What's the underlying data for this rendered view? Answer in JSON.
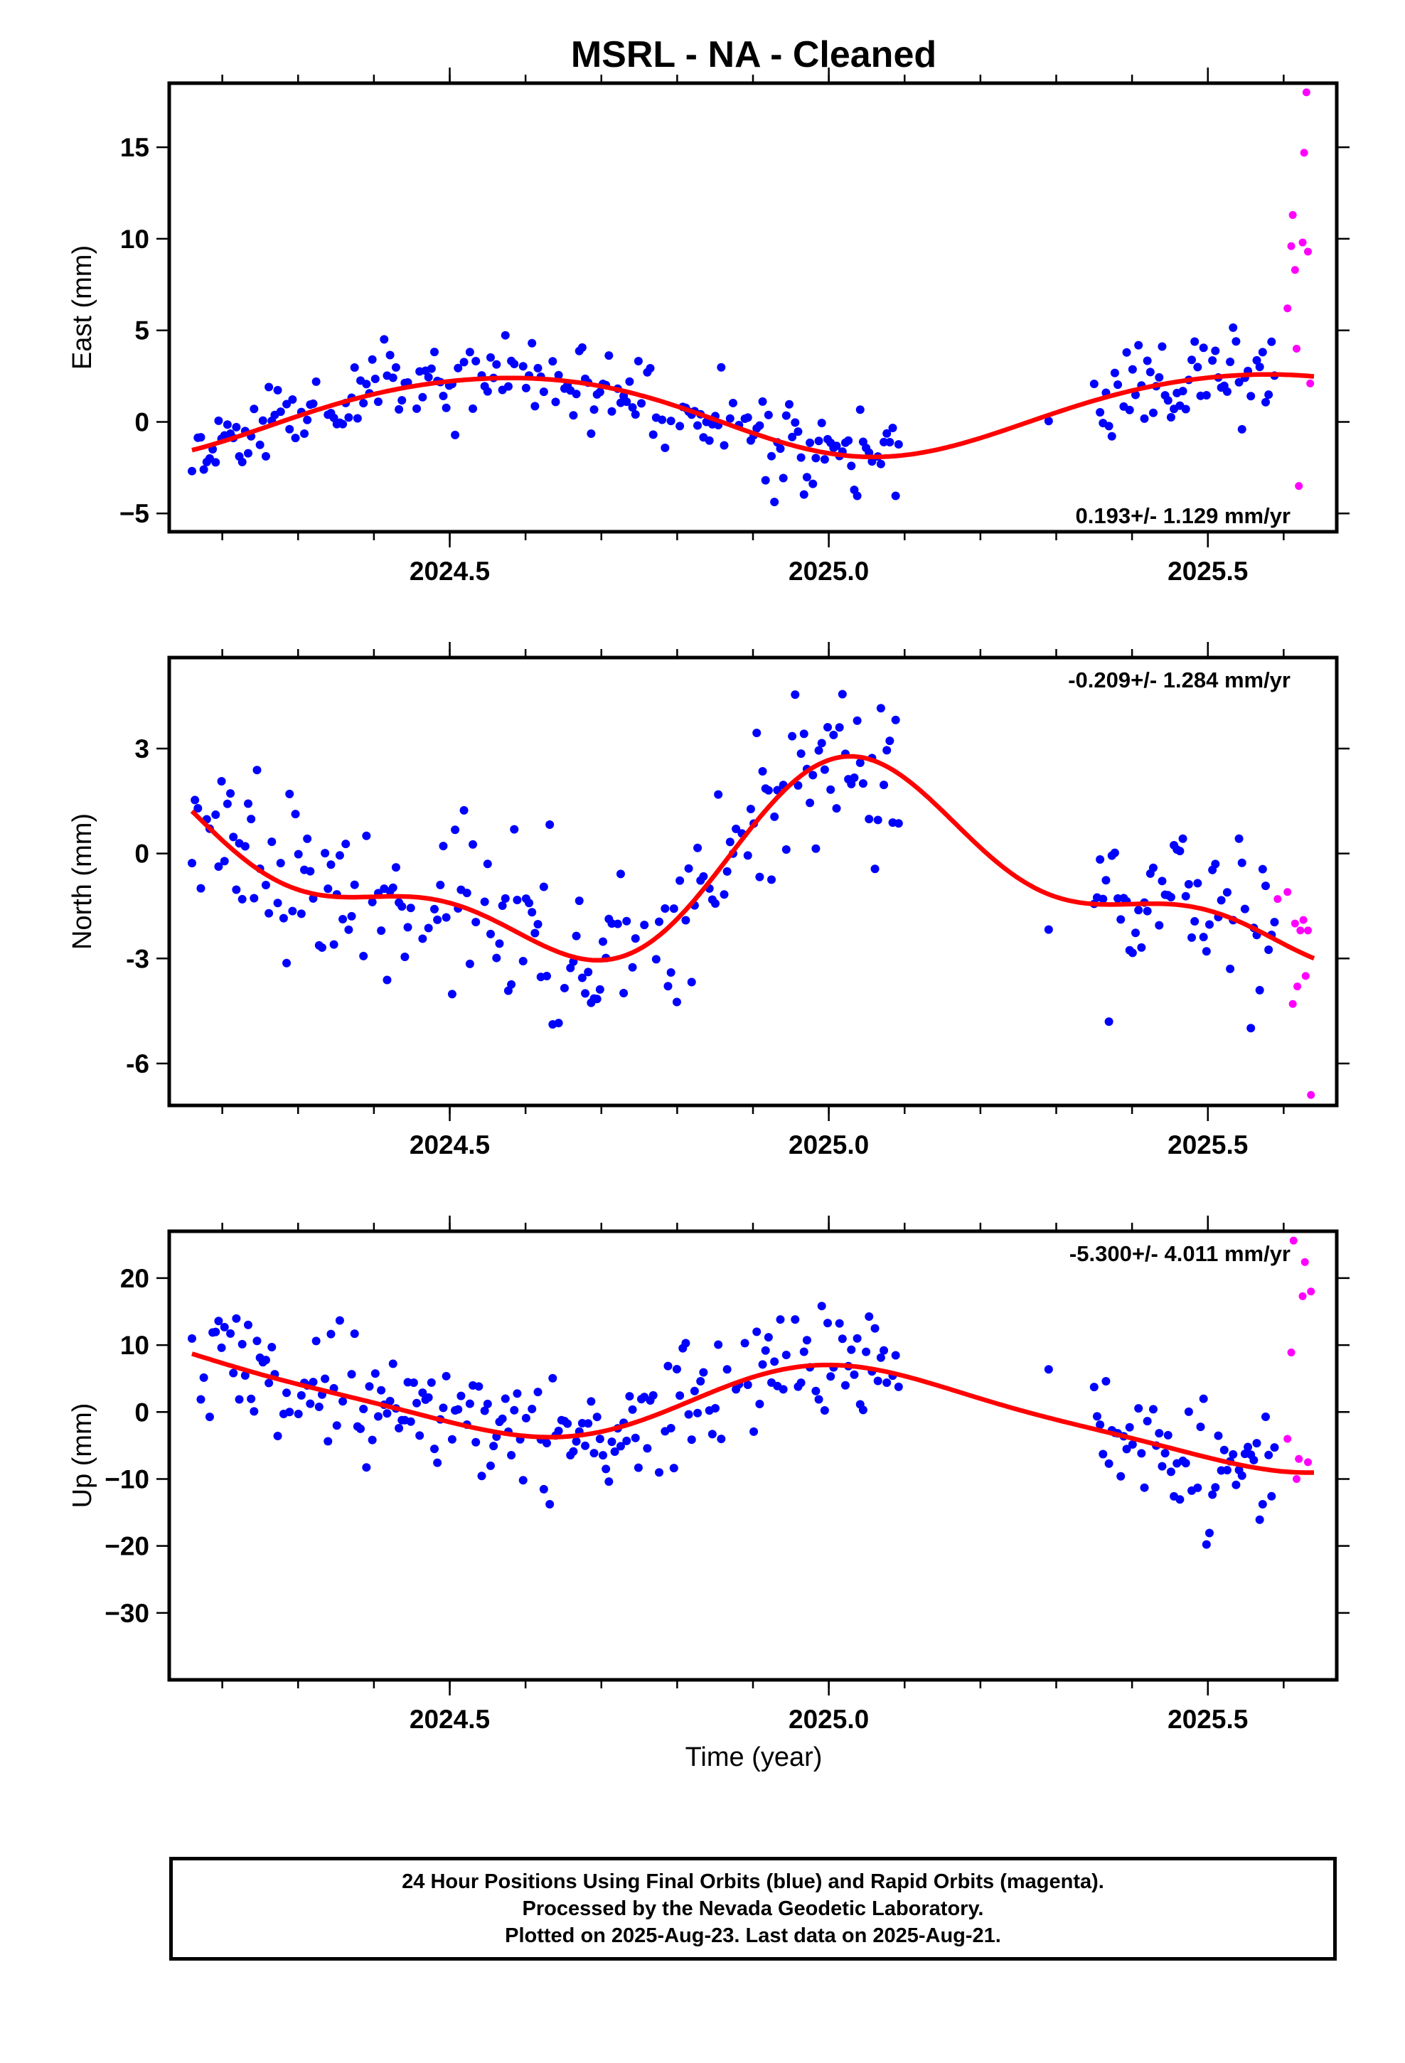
{
  "title": "MSRL  - NA - Cleaned",
  "xlabel": "Time (year)",
  "footer": {
    "line1": "24 Hour Positions Using Final Orbits (blue) and Rapid Orbits (magenta).",
    "line2": "Processed by the Nevada Geodetic Laboratory.",
    "line3": "Plotted on 2025-Aug-23. Last data on 2025-Aug-21."
  },
  "colors": {
    "final": "#0000ff",
    "rapid": "#ff00ff",
    "fit": "#ff0000"
  },
  "chart_data": [
    {
      "type": "scatter",
      "panel": "east",
      "ylabel": "East (mm)",
      "rate": "0.193+/- 1.129 mm/yr",
      "rate_position": "bottom-right",
      "xlim": [
        2024.13,
        2025.67
      ],
      "ylim": [
        -6,
        18.5
      ],
      "xticks": [
        2024.5,
        2025.0,
        2025.5
      ],
      "xtick_labels": [
        "2024.5",
        "2025.0",
        "2025.5"
      ],
      "yticks": [
        -5,
        0,
        5,
        10,
        15
      ],
      "ytick_labels": [
        "−5",
        "0",
        "5",
        "10",
        "15"
      ],
      "seasonal_fit": {
        "offset": 0.45,
        "trend": 0.193,
        "a1": 2.2,
        "p1": 4.3,
        "a2": -0.2,
        "p2": 1.0
      },
      "final_orbits": {
        "x_segments": [
          [
            2024.16,
            2025.095
          ],
          [
            2025.29,
            2025.29
          ],
          [
            2025.35,
            2025.59
          ]
        ],
        "rng_seed": 11,
        "noise_sd": 1.2
      },
      "rapid_orbits": {
        "x": [
          2025.605,
          2025.61,
          2025.612,
          2025.615,
          2025.617,
          2025.62,
          2025.625,
          2025.627,
          2025.63,
          2025.632,
          2025.635
        ],
        "y": [
          6.2,
          9.6,
          11.3,
          8.3,
          4.0,
          -3.5,
          9.8,
          14.7,
          18.0,
          9.3,
          2.1
        ]
      }
    },
    {
      "type": "scatter",
      "panel": "north",
      "ylabel": "North (mm)",
      "rate": "-0.209+/- 1.284 mm/yr",
      "rate_position": "top-right",
      "xlim": [
        2024.13,
        2025.67
      ],
      "ylim": [
        -7.2,
        5.6
      ],
      "xticks": [
        2024.5,
        2025.0,
        2025.5
      ],
      "xtick_labels": [
        "2024.5",
        "2025.0",
        "2025.5"
      ],
      "yticks": [
        -6,
        -3,
        0,
        3
      ],
      "ytick_labels": [
        "-6",
        "-3",
        "0",
        "3"
      ],
      "seasonal_fit": {
        "offset": -0.55,
        "trend": -0.209,
        "a1": 2.35,
        "p1": 1.1,
        "a2": 1.15,
        "p2": 1.5
      },
      "final_orbits": {
        "x_segments": [
          [
            2024.16,
            2025.095
          ],
          [
            2025.29,
            2025.29
          ],
          [
            2025.35,
            2025.59
          ]
        ],
        "rng_seed": 23,
        "noise_sd": 1.15
      },
      "rapid_orbits": {
        "x": [
          2025.592,
          2025.605,
          2025.612,
          2025.615,
          2025.618,
          2025.622,
          2025.626,
          2025.629,
          2025.632,
          2025.636
        ],
        "y": [
          -1.3,
          -1.1,
          -4.3,
          -2.0,
          -3.8,
          -2.2,
          -1.9,
          -3.5,
          -2.2,
          -6.9
        ]
      }
    },
    {
      "type": "scatter",
      "panel": "up",
      "ylabel": "Up (mm)",
      "rate": "-5.300+/- 4.011 mm/yr",
      "rate_position": "top-right",
      "xlim": [
        2024.13,
        2025.67
      ],
      "ylim": [
        -40,
        27
      ],
      "xticks": [
        2024.5,
        2025.0,
        2025.5
      ],
      "xtick_labels": [
        "2024.5",
        "2025.0",
        "2025.5"
      ],
      "yticks": [
        -30,
        -20,
        -10,
        0,
        10,
        20
      ],
      "ytick_labels": [
        "−30",
        "−20",
        "−10",
        "0",
        "10",
        "20"
      ],
      "seasonal_fit": {
        "offset": 1.0,
        "trend": -5.3,
        "a1": 6.0,
        "p1": 1.2,
        "a2": 1.2,
        "p2": 2.2
      },
      "final_orbits": {
        "x_segments": [
          [
            2024.16,
            2025.095
          ],
          [
            2025.29,
            2025.29
          ],
          [
            2025.35,
            2025.59
          ]
        ],
        "rng_seed": 37,
        "noise_sd": 4.2
      },
      "rapid_orbits": {
        "x": [
          2025.605,
          2025.61,
          2025.613,
          2025.617,
          2025.62,
          2025.625,
          2025.628,
          2025.632,
          2025.636
        ],
        "y": [
          -4,
          8.9,
          25.6,
          -10.0,
          -7.0,
          17.3,
          22.4,
          -7.5,
          18.0
        ]
      }
    }
  ]
}
